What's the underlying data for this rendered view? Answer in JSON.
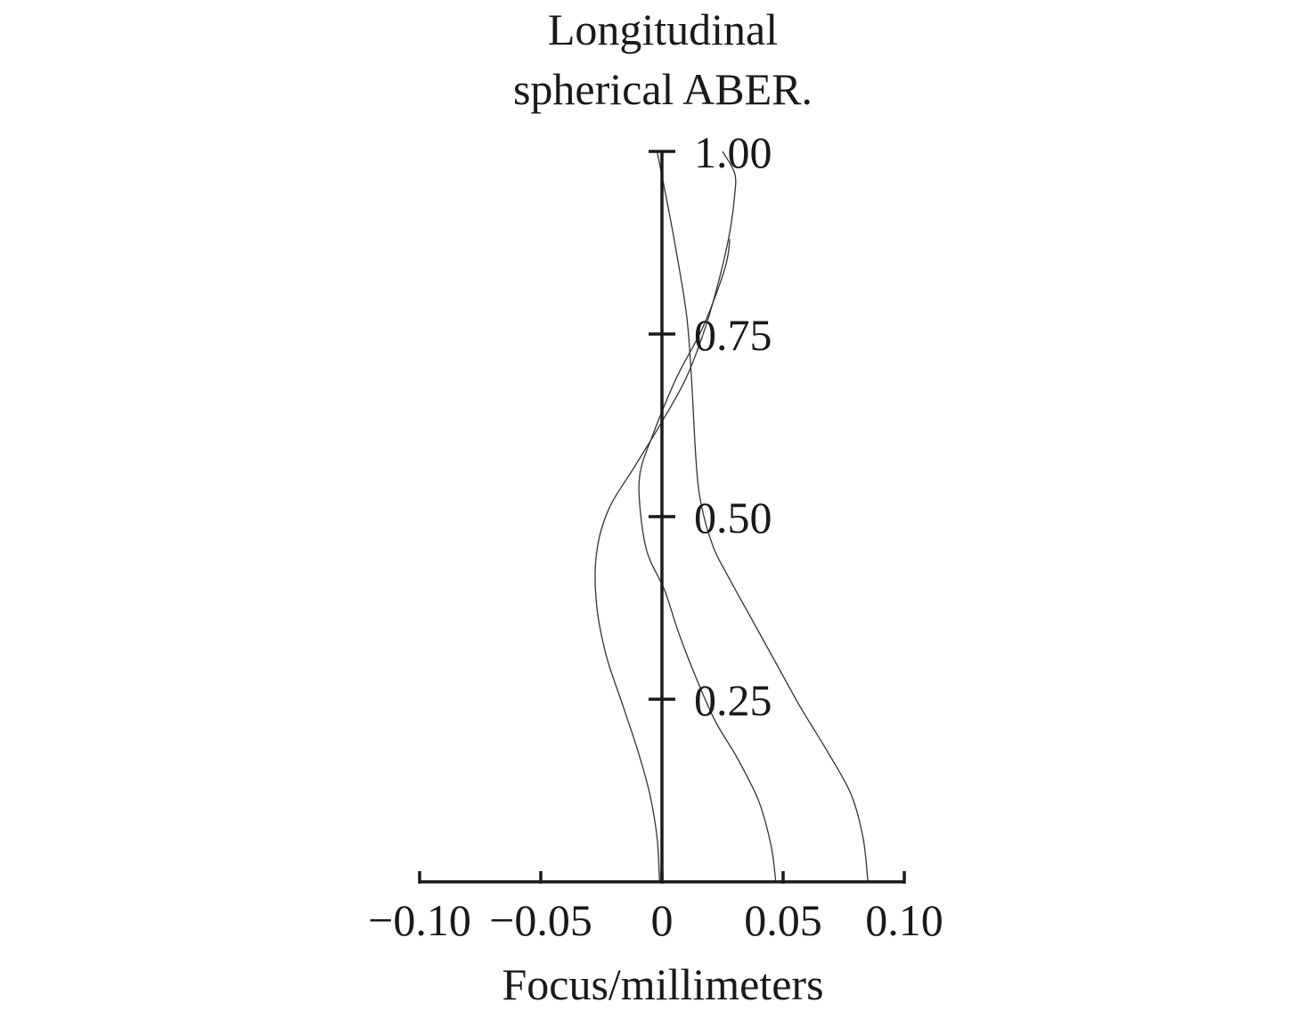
{
  "chart_data": {
    "type": "line",
    "title_lines": [
      "Longitudinal",
      "spherical ABER."
    ],
    "xlabel": "Focus/millimeters",
    "ylabel": "",
    "xlim": [
      -0.1,
      0.1
    ],
    "ylim": [
      0,
      1
    ],
    "x_ticks": [
      -0.1,
      -0.05,
      0,
      0.05,
      0.1
    ],
    "x_tick_labels": [
      "−0.10",
      "−0.05",
      "0",
      "0.05",
      "0.10"
    ],
    "y_ticks": [
      0.25,
      0.5,
      0.75,
      1.0
    ],
    "y_tick_labels": [
      "0.25",
      "0.50",
      "0.75",
      "1.00"
    ],
    "grid": false,
    "legend": "none",
    "series": [
      {
        "points": [
          [
            -0.001,
            0.0
          ],
          [
            -0.002,
            0.06
          ],
          [
            -0.005,
            0.12
          ],
          [
            -0.01,
            0.18
          ],
          [
            -0.016,
            0.24
          ],
          [
            -0.023,
            0.31
          ],
          [
            -0.027,
            0.38
          ],
          [
            -0.027,
            0.45
          ],
          [
            -0.022,
            0.51
          ],
          [
            -0.011,
            0.57
          ],
          [
            0.0,
            0.63
          ],
          [
            0.01,
            0.69
          ],
          [
            0.018,
            0.76
          ],
          [
            0.024,
            0.83
          ],
          [
            0.028,
            0.89
          ],
          [
            0.03,
            0.94
          ],
          [
            0.03,
            0.97
          ],
          [
            0.025,
            1.0
          ]
        ]
      },
      {
        "points": [
          [
            0.047,
            0.0
          ],
          [
            0.045,
            0.05
          ],
          [
            0.04,
            0.11
          ],
          [
            0.031,
            0.17
          ],
          [
            0.022,
            0.22
          ],
          [
            0.014,
            0.28
          ],
          [
            0.007,
            0.34
          ],
          [
            0.001,
            0.4
          ],
          [
            -0.006,
            0.45
          ],
          [
            -0.009,
            0.51
          ],
          [
            -0.009,
            0.56
          ],
          [
            -0.004,
            0.61
          ],
          [
            0.006,
            0.69
          ],
          [
            0.017,
            0.76
          ],
          [
            0.026,
            0.84
          ],
          [
            0.028,
            0.88
          ]
        ]
      },
      {
        "points": [
          [
            0.085,
            0.0
          ],
          [
            0.083,
            0.06
          ],
          [
            0.078,
            0.12
          ],
          [
            0.068,
            0.18
          ],
          [
            0.057,
            0.24
          ],
          [
            0.047,
            0.3
          ],
          [
            0.037,
            0.36
          ],
          [
            0.027,
            0.42
          ],
          [
            0.021,
            0.46
          ],
          [
            0.016,
            0.52
          ],
          [
            0.014,
            0.58
          ],
          [
            0.012,
            0.7
          ],
          [
            0.01,
            0.78
          ],
          [
            0.005,
            0.88
          ],
          [
            0.001,
            0.95
          ],
          [
            -0.002,
            1.0
          ]
        ]
      }
    ]
  }
}
